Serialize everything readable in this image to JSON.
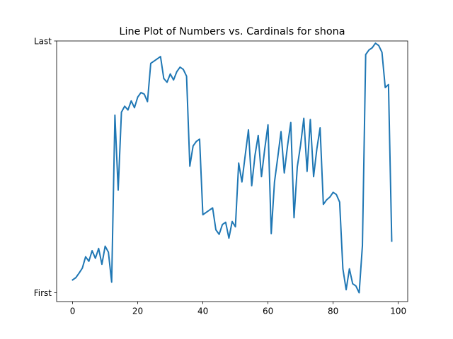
{
  "chart_data": {
    "type": "line",
    "title": "Line Plot of Numbers vs. Cardinals for shona",
    "xlabel": "",
    "ylabel": "",
    "xlim": [
      -4.9,
      102.9
    ],
    "ylim": [
      -0.035,
      1.0
    ],
    "x_ticks": [
      0,
      20,
      40,
      60,
      80,
      100
    ],
    "y_ticks": [
      {
        "value": 0.0,
        "label": "First"
      },
      {
        "value": 1.0,
        "label": "Last"
      }
    ],
    "grid": false,
    "legend": false,
    "series": [
      {
        "color": "#1f77b4",
        "x": [
          0,
          1,
          2,
          3,
          4,
          5,
          6,
          7,
          8,
          9,
          10,
          11,
          12,
          13,
          14,
          15,
          16,
          17,
          18,
          19,
          20,
          21,
          22,
          23,
          24,
          25,
          26,
          27,
          28,
          29,
          30,
          31,
          32,
          33,
          34,
          35,
          36,
          37,
          38,
          39,
          40,
          41,
          42,
          43,
          44,
          45,
          46,
          47,
          48,
          49,
          50,
          51,
          52,
          53,
          54,
          55,
          56,
          57,
          58,
          59,
          60,
          61,
          62,
          63,
          64,
          65,
          66,
          67,
          68,
          69,
          70,
          71,
          72,
          73,
          74,
          75,
          76,
          77,
          78,
          79,
          80,
          81,
          82,
          83,
          84,
          85,
          86,
          87,
          88,
          89,
          90,
          91,
          92,
          93,
          94,
          95,
          96,
          97,
          98
        ],
        "values": [
          0.051,
          0.06,
          0.078,
          0.098,
          0.143,
          0.125,
          0.167,
          0.137,
          0.176,
          0.113,
          0.185,
          0.161,
          0.042,
          0.705,
          0.408,
          0.717,
          0.741,
          0.726,
          0.762,
          0.735,
          0.777,
          0.795,
          0.789,
          0.759,
          0.911,
          0.92,
          0.929,
          0.938,
          0.851,
          0.836,
          0.869,
          0.845,
          0.878,
          0.896,
          0.887,
          0.86,
          0.503,
          0.583,
          0.601,
          0.61,
          0.31,
          0.319,
          0.328,
          0.337,
          0.25,
          0.232,
          0.271,
          0.28,
          0.217,
          0.283,
          0.262,
          0.515,
          0.44,
          0.545,
          0.647,
          0.425,
          0.545,
          0.625,
          0.461,
          0.571,
          0.667,
          0.235,
          0.44,
          0.538,
          0.64,
          0.476,
          0.583,
          0.676,
          0.298,
          0.5,
          0.586,
          0.693,
          0.482,
          0.688,
          0.461,
          0.571,
          0.655,
          0.351,
          0.369,
          0.38,
          0.399,
          0.39,
          0.36,
          0.095,
          0.012,
          0.095,
          0.036,
          0.027,
          0.0,
          0.188,
          0.946,
          0.964,
          0.973,
          0.991,
          0.982,
          0.955,
          0.815,
          0.827,
          0.205
        ]
      }
    ]
  }
}
